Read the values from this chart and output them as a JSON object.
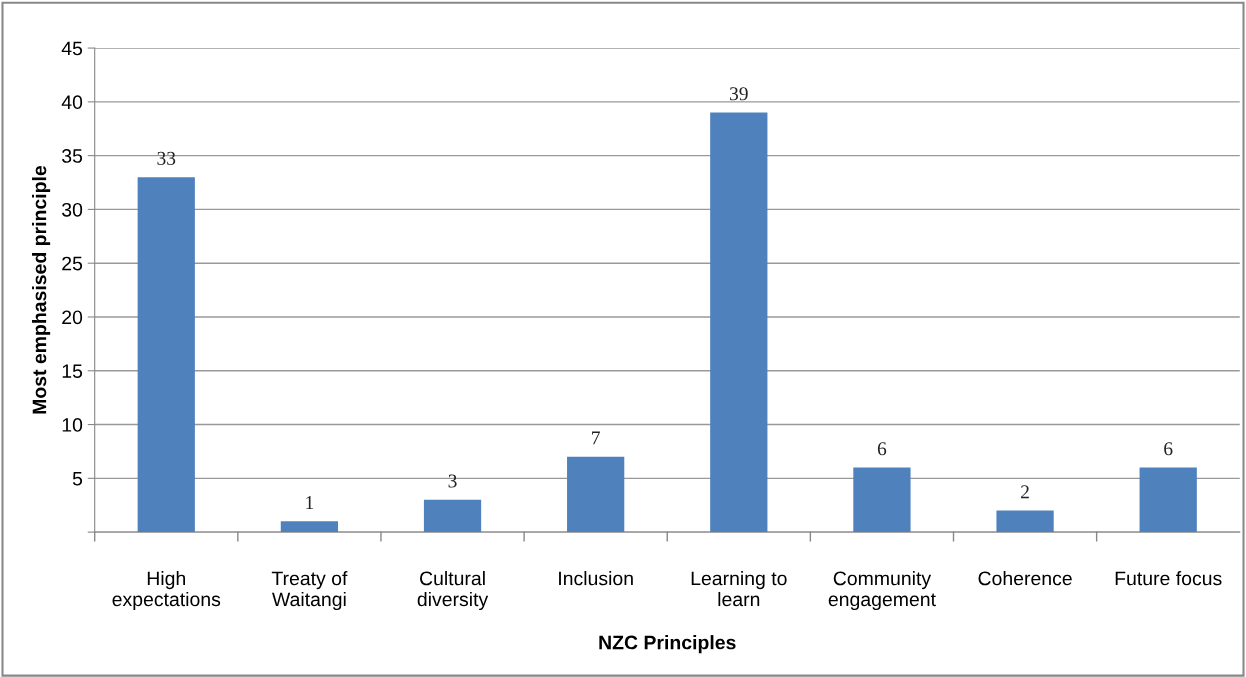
{
  "chart_data": {
    "type": "bar",
    "xlabel": "NZC Principles",
    "ylabel": "Most emphasised principle",
    "categories": [
      "High\nexpectations",
      "Treaty of\nWaitangi",
      "Cultural\ndiversity",
      "Inclusion",
      "Learning to\nlearn",
      "Community\nengagement",
      "Coherence",
      "Future focus"
    ],
    "values": [
      33,
      1,
      3,
      7,
      39,
      6,
      2,
      6
    ],
    "color": "#4f81bd",
    "data_labels": true,
    "grid": "y",
    "ylim": [
      0,
      45
    ],
    "yticks": [
      {
        "value": 0,
        "label": null
      },
      5,
      10,
      15,
      20,
      25,
      30,
      35,
      40,
      45
    ]
  }
}
